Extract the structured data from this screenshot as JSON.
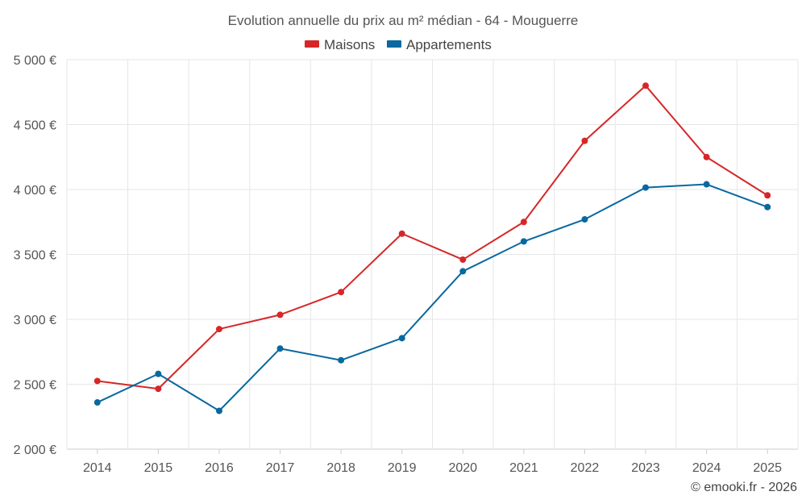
{
  "chart_data": {
    "type": "line",
    "title": "Evolution annuelle du prix au m² médian - 64 - Mouguerre",
    "categories": [
      "2014",
      "2015",
      "2016",
      "2017",
      "2018",
      "2019",
      "2020",
      "2021",
      "2022",
      "2023",
      "2024",
      "2025"
    ],
    "series": [
      {
        "name": "Maisons",
        "color": "#d62728",
        "values": [
          2525,
          2465,
          2925,
          3035,
          3210,
          3660,
          3460,
          3750,
          4375,
          4800,
          4250,
          3955
        ]
      },
      {
        "name": "Appartements",
        "color": "#0868a0",
        "values": [
          2360,
          2580,
          2295,
          2775,
          2685,
          2855,
          3370,
          3600,
          3770,
          4015,
          4040,
          3865
        ]
      }
    ],
    "ylim": [
      2000,
      5000
    ],
    "yticks": [
      2000,
      2500,
      3000,
      3500,
      4000,
      4500,
      5000
    ],
    "ytick_labels": [
      "2 000 €",
      "2 500 €",
      "3 000 €",
      "3 500 €",
      "4 000 €",
      "4 500 €",
      "5 000 €"
    ],
    "xlabel": "",
    "ylabel": "",
    "grid": true,
    "legend_position": "top-center"
  },
  "credit": "© emooki.fr - 2026"
}
